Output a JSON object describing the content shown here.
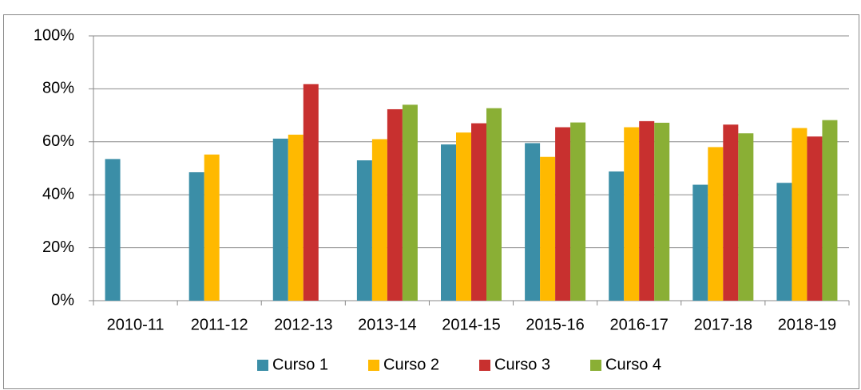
{
  "chart_data": {
    "type": "bar",
    "categories": [
      "2010-11",
      "2011-12",
      "2012-13",
      "2013-14",
      "2014-15",
      "2015-16",
      "2016-17",
      "2017-18",
      "2018-19"
    ],
    "series": [
      {
        "name": "Curso 1",
        "color": "#3b8ea7",
        "values": [
          53.5,
          48.5,
          61.2,
          53,
          59,
          59.5,
          48.8,
          43.8,
          44.5
        ]
      },
      {
        "name": "Curso 2",
        "color": "#ffb900",
        "values": [
          null,
          55.2,
          62.7,
          61,
          63.5,
          54.3,
          65.5,
          58,
          65.2
        ]
      },
      {
        "name": "Curso 3",
        "color": "#c8302f",
        "values": [
          null,
          null,
          81.8,
          72.3,
          67,
          65.5,
          67.8,
          66.5,
          62
        ]
      },
      {
        "name": "Curso 4",
        "color": "#8aaf35",
        "values": [
          null,
          null,
          null,
          74,
          72.7,
          67.3,
          67.2,
          63.2,
          68.2
        ]
      }
    ],
    "ylim": [
      0,
      100
    ],
    "yticks": [
      {
        "value": 0,
        "label": "0%"
      },
      {
        "value": 20,
        "label": "20%"
      },
      {
        "value": 40,
        "label": "40%"
      },
      {
        "value": 60,
        "label": "60%"
      },
      {
        "value": 80,
        "label": "80%"
      },
      {
        "value": 100,
        "label": "100%"
      }
    ],
    "grid": true,
    "legend": "bottom"
  }
}
